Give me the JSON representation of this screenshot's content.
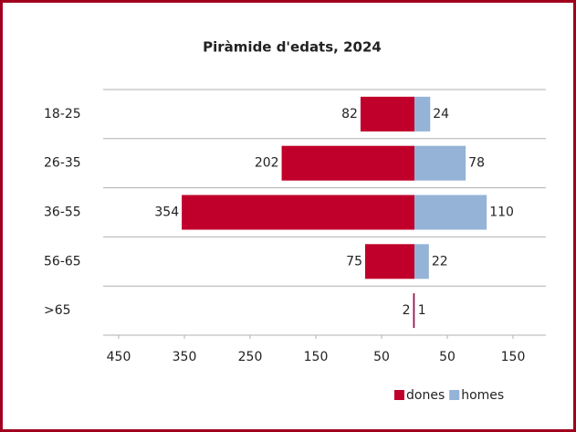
{
  "chart_data": {
    "type": "pyramid",
    "title": "Piràmide d'edats, 2024",
    "categories": [
      "18-25",
      "26-35",
      "36-55",
      "56-65",
      ">65"
    ],
    "series": [
      {
        "name": "dones",
        "color": "#c0002a",
        "values": [
          -82,
          -202,
          -354,
          -75,
          -2
        ],
        "value_labels": [
          "82",
          "202",
          "354",
          "75",
          "2"
        ]
      },
      {
        "name": "homes",
        "color": "#95b3d7",
        "values": [
          24,
          78,
          110,
          22,
          1
        ]
      }
    ],
    "xlim": [
      -450,
      200
    ],
    "xticks": [
      {
        "value": -450,
        "label": "450"
      },
      {
        "value": -350,
        "label": "350"
      },
      {
        "value": -250,
        "label": "250"
      },
      {
        "value": -150,
        "label": "150"
      },
      {
        "value": -50,
        "label": "50"
      },
      50,
      150
    ],
    "legend": "lower right"
  }
}
